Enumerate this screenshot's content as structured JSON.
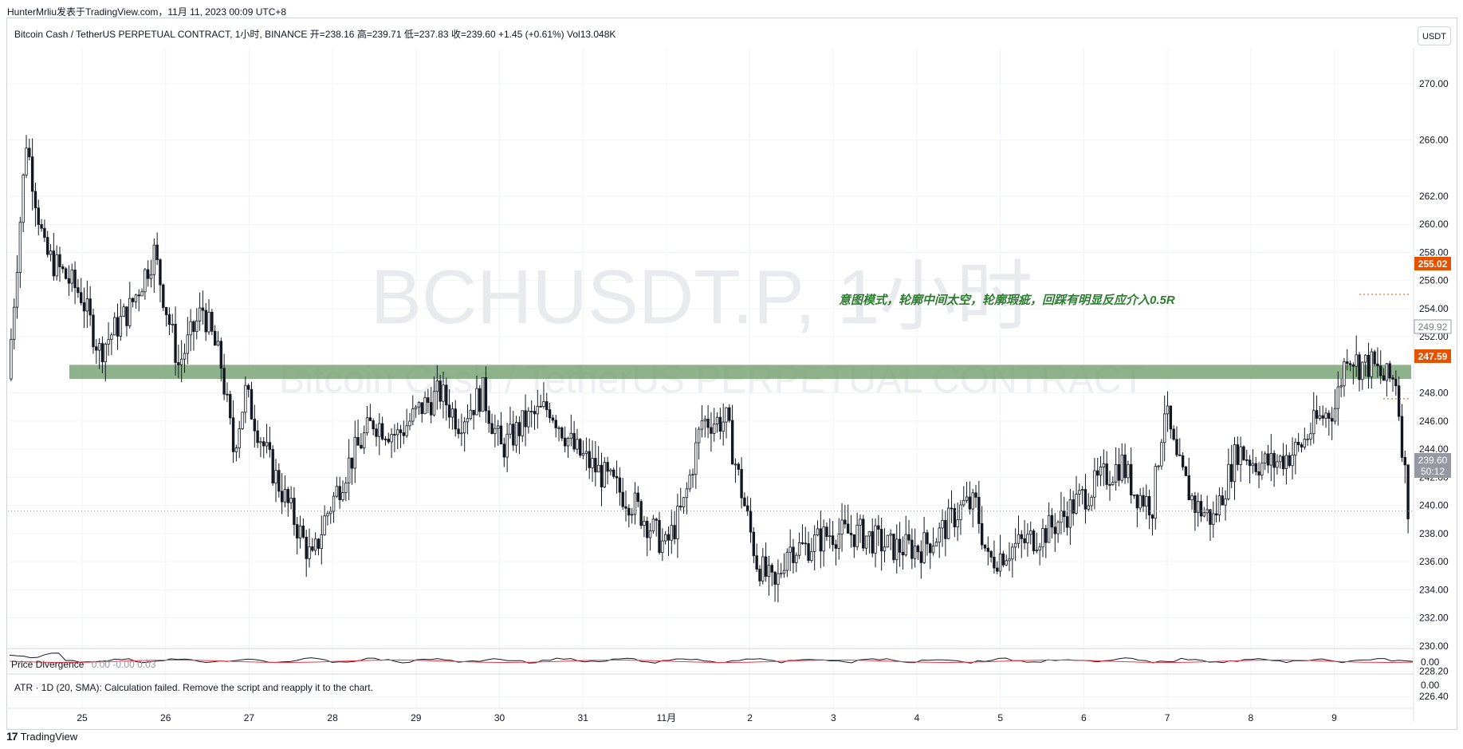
{
  "header": {
    "attribution": "HunterMrliu发表于TradingView.com，11月 11, 2023 00:09 UTC+8",
    "legend": "Bitcoin Cash / TetherUS PERPETUAL CONTRACT, 1小时, BINANCE  开=238.16  高=239.71  低=237.83  收=239.60  +1.45 (+0.61%)  Vol13.048K",
    "currency_button": "USDT"
  },
  "watermark": {
    "symbol": "BCHUSDT.P, 1小时",
    "description": "Bitcoin Cash / TetherUS PERPETUAL CONTRACT"
  },
  "annotation": "意图模式，轮廓中间太空，轮廓瑕疵，回踩有明显反应介入0.5R",
  "price_labels": {
    "upper": "255.02",
    "middle": "249.92",
    "lower": "247.59",
    "last_price": "239.60",
    "countdown": "50:12"
  },
  "oscillator": {
    "title": "Price Divergence",
    "values": "0.00  -0.00  0.03",
    "scale_label": "0.00"
  },
  "atr": {
    "label": "ATR · 1D (20, SMA): Calculation failed. Remove the script and reapply it to the chart.",
    "scale_label": "0.00"
  },
  "footer": {
    "brand": "TradingView",
    "logo_text": "17"
  },
  "colors": {
    "up": "#ffffff",
    "down": "#131722",
    "zone": "#7aa577",
    "annotation": "#2e7d32",
    "level_red": "#e65100",
    "last_price_bg": "#9598a1"
  },
  "chart_data": {
    "type": "candlestick",
    "timeframe": "1小时",
    "symbol": "BCHUSDT.P",
    "ylim": [
      225,
      272
    ],
    "y_ticks": [
      "270.00",
      "266.00",
      "262.00",
      "260.00",
      "258.00",
      "256.00",
      "254.00",
      "252.00",
      "248.00",
      "246.00",
      "244.00",
      "242.00",
      "240.00",
      "238.00",
      "236.00",
      "234.00",
      "232.00",
      "230.00",
      "228.20",
      "226.40"
    ],
    "x_ticks": [
      "25",
      "26",
      "27",
      "28",
      "29",
      "30",
      "31",
      "11月",
      "2",
      "3",
      "4",
      "5",
      "6",
      "7",
      "8",
      "9"
    ],
    "zone": {
      "low": 249.0,
      "high": 250.0
    },
    "levels": {
      "upper": 255.02,
      "lower": 247.59,
      "last": 239.6
    },
    "anchors": [
      [
        0,
        249
      ],
      [
        6,
        266
      ],
      [
        12,
        258
      ],
      [
        20,
        256
      ],
      [
        24,
        255
      ],
      [
        30,
        251
      ],
      [
        40,
        254
      ],
      [
        48,
        258
      ],
      [
        56,
        250
      ],
      [
        64,
        254
      ],
      [
        70,
        250
      ],
      [
        74,
        244
      ],
      [
        78,
        248
      ],
      [
        86,
        243
      ],
      [
        92,
        240
      ],
      [
        100,
        236
      ],
      [
        104,
        239
      ],
      [
        112,
        243
      ],
      [
        120,
        246
      ],
      [
        128,
        245
      ],
      [
        136,
        247
      ],
      [
        142,
        248
      ],
      [
        148,
        246
      ],
      [
        156,
        248
      ],
      [
        162,
        244
      ],
      [
        170,
        246
      ],
      [
        178,
        247
      ],
      [
        186,
        244
      ],
      [
        196,
        242
      ],
      [
        206,
        240
      ],
      [
        216,
        237
      ],
      [
        222,
        240
      ],
      [
        228,
        246
      ],
      [
        236,
        246
      ],
      [
        240,
        242
      ],
      [
        246,
        236
      ],
      [
        252,
        234
      ],
      [
        256,
        237
      ],
      [
        262,
        237
      ],
      [
        270,
        238
      ],
      [
        280,
        238
      ],
      [
        290,
        237
      ],
      [
        300,
        237
      ],
      [
        306,
        238
      ],
      [
        314,
        240
      ],
      [
        318,
        240
      ],
      [
        322,
        236
      ],
      [
        330,
        237
      ],
      [
        340,
        238
      ],
      [
        346,
        239
      ],
      [
        350,
        240
      ],
      [
        360,
        242
      ],
      [
        366,
        243
      ],
      [
        370,
        241
      ],
      [
        376,
        240
      ],
      [
        380,
        247
      ],
      [
        384,
        243
      ],
      [
        390,
        240
      ],
      [
        396,
        239
      ],
      [
        404,
        244
      ],
      [
        410,
        243
      ],
      [
        416,
        243
      ],
      [
        424,
        244
      ],
      [
        430,
        246
      ],
      [
        436,
        247
      ],
      [
        440,
        251
      ],
      [
        444,
        250
      ],
      [
        448,
        250
      ],
      [
        452,
        249
      ],
      [
        456,
        249
      ],
      [
        460,
        240
      ]
    ]
  }
}
